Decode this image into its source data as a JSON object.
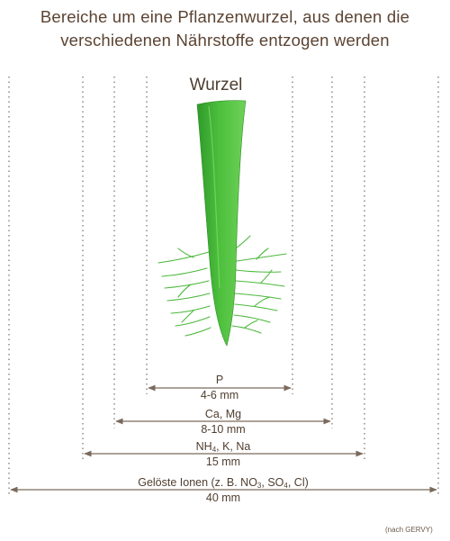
{
  "title": {
    "line1": "Bereiche um eine Pflanzenwurzel, aus denen die",
    "line2": "verschiedenen Nährstoffe entzogen werden"
  },
  "root_label": "Wurzel",
  "zones": [
    {
      "nutrient": "P",
      "range": "4-6 mm"
    },
    {
      "nutrient": "Ca, Mg",
      "range": "8-10 mm"
    },
    {
      "nutrient_parts": [
        "NH",
        "4",
        ", K, Na"
      ],
      "range": "15 mm"
    },
    {
      "nutrient_parts": [
        "Gelöste Ionen (z. B. NO",
        "3",
        ", SO",
        "4",
        ", Cl)"
      ],
      "range": "40 mm"
    }
  ],
  "source": "(nach GERVY)",
  "colors": {
    "text": "#5b4332",
    "lines": "#7a6a5c",
    "root_dark": "#2f9a2a",
    "root_light": "#6fd15a"
  }
}
